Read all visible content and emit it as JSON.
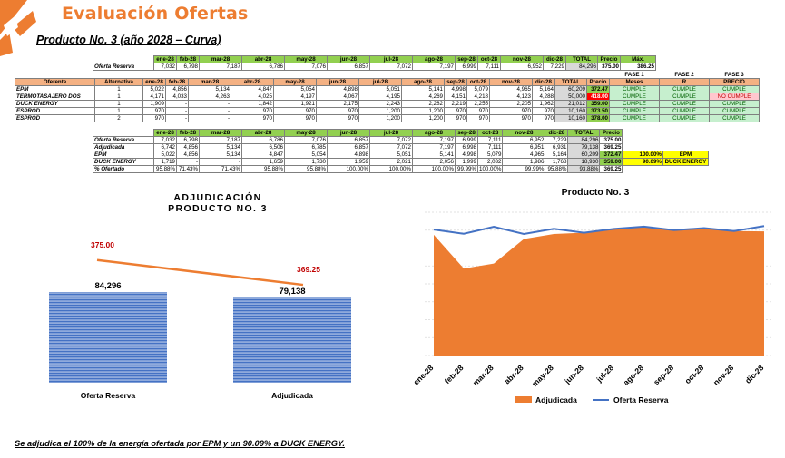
{
  "header": {
    "title": "Evaluación Ofertas",
    "subtitle": "Producto No. 3 (año 2028 – Curva)",
    "logo_icon": "orange-arrow-logo"
  },
  "reserve_table": {
    "headers": [
      "",
      "ene-28",
      "feb-28",
      "mar-28",
      "abr-28",
      "may-28",
      "jun-28",
      "jul-28",
      "ago-28",
      "sep-28",
      "oct-28",
      "nov-28",
      "dic-28",
      "TOTAL",
      "Precio",
      "Máx."
    ],
    "row": [
      "Oferta Reserva",
      "7,032",
      "6,798",
      "7,187",
      "6,786",
      "7,076",
      "6,857",
      "7,072",
      "7,197",
      "6,999",
      "7,111",
      "6,952",
      "7,229",
      "84,296",
      "375.00",
      "386.25"
    ]
  },
  "offers_table": {
    "phase_headers": [
      "FASE 1",
      "FASE 2",
      "FASE 3"
    ],
    "headers": [
      "Oferente",
      "Alternativa",
      "ene-28",
      "feb-28",
      "mar-28",
      "abr-28",
      "may-28",
      "jun-28",
      "jul-28",
      "ago-28",
      "sep-28",
      "oct-28",
      "nov-28",
      "dic-28",
      "TOTAL",
      "Precio",
      "Meses",
      "R",
      "PRECIO"
    ],
    "rows": [
      {
        "cells": [
          "EPM",
          "1",
          "5,022",
          "4,856",
          "5,134",
          "4,847",
          "5,054",
          "4,898",
          "5,051",
          "5,141",
          "4,998",
          "5,079",
          "4,965",
          "5,164",
          "60,209",
          "372.47",
          "CUMPLE",
          "CUMPLE",
          "CUMPLE"
        ],
        "price_ok": true,
        "f3_ok": true
      },
      {
        "cells": [
          "TERMOTASAJERO DOS",
          "1",
          "4,171",
          "4,033",
          "4,263",
          "4,025",
          "4,197",
          "4,067",
          "4,195",
          "4,269",
          "4,151",
          "4,218",
          "4,123",
          "4,288",
          "50,000",
          "418.00",
          "CUMPLE",
          "CUMPLE",
          "NO CUMPLE"
        ],
        "price_ok": false,
        "f3_ok": false
      },
      {
        "cells": [
          "DUCK ENERGY",
          "1",
          "1,909",
          "-",
          "-",
          "1,842",
          "1,921",
          "2,175",
          "2,243",
          "2,282",
          "2,219",
          "2,255",
          "2,205",
          "1,962",
          "21,012",
          "359.00",
          "CUMPLE",
          "CUMPLE",
          "CUMPLE"
        ],
        "price_ok": true,
        "f3_ok": true
      },
      {
        "cells": [
          "ESPROD",
          "1",
          "970",
          "-",
          "-",
          "970",
          "970",
          "970",
          "1,200",
          "1,200",
          "970",
          "970",
          "970",
          "970",
          "10,160",
          "373.50",
          "CUMPLE",
          "CUMPLE",
          "CUMPLE"
        ],
        "price_ok": true,
        "f3_ok": true
      },
      {
        "cells": [
          "ESPROD",
          "2",
          "970",
          "-",
          "-",
          "970",
          "970",
          "970",
          "1,200",
          "1,200",
          "970",
          "970",
          "970",
          "970",
          "10,160",
          "378.00",
          "CUMPLE",
          "CUMPLE",
          "CUMPLE"
        ],
        "price_ok": true,
        "f3_ok": true
      }
    ]
  },
  "award_table": {
    "headers": [
      "",
      "ene-28",
      "feb-28",
      "mar-28",
      "abr-28",
      "may-28",
      "jun-28",
      "jul-28",
      "ago-28",
      "sep-28",
      "oct-28",
      "nov-28",
      "dic-28",
      "TOTAL",
      "Precio"
    ],
    "rows": [
      [
        "Oferta Reserva",
        "7,032",
        "6,798",
        "7,187",
        "6,786",
        "7,076",
        "6,857",
        "7,072",
        "7,197",
        "6,999",
        "7,111",
        "6,952",
        "7,229",
        "84,296",
        "375.00"
      ],
      [
        "Adjudicada",
        "6,742",
        "4,856",
        "5,134",
        "6,506",
        "6,785",
        "6,857",
        "7,072",
        "7,197",
        "6,998",
        "7,111",
        "6,951",
        "6,931",
        "79,138",
        "369.25"
      ],
      [
        "EPM",
        "5,022",
        "4,856",
        "5,134",
        "4,847",
        "5,054",
        "4,898",
        "5,051",
        "5,141",
        "4,998",
        "5,079",
        "4,965",
        "5,164",
        "60,209",
        "372.47"
      ],
      [
        "DUCK ENERGY",
        "1,719",
        "-",
        "-",
        "1,659",
        "1,730",
        "1,959",
        "2,021",
        "2,056",
        "1,999",
        "2,032",
        "1,986",
        "1,768",
        "18,930",
        "359.00"
      ],
      [
        "% Ofertado",
        "95.88%",
        "71.43%",
        "71.43%",
        "95.88%",
        "95.88%",
        "100.00%",
        "100.00%",
        "100.00%",
        "99.99%",
        "100.00%",
        "99.99%",
        "95.88%",
        "93.88%",
        "369.25"
      ]
    ],
    "side": [
      {
        "pct": "100.00%",
        "name": "EPM"
      },
      {
        "pct": "90.09%",
        "name": "DUCK ENERGY"
      }
    ]
  },
  "chart_data": [
    {
      "type": "bar",
      "title": "ADJUDICACIÓN PRODUCTO NO. 3",
      "categories": [
        "Oferta Reserva",
        "Adjudicada"
      ],
      "series": [
        {
          "values": [
            84296,
            79138
          ]
        },
        {
          "values": [
            375.0,
            369.25
          ]
        }
      ],
      "bar_labels": [
        "84,296",
        "79,138"
      ],
      "price_labels": [
        "375.00",
        "369.25"
      ],
      "colors": {
        "bars": "#4472C4",
        "line": "#ED7D31",
        "price_label": "#C00000"
      },
      "legend": "none"
    },
    {
      "type": "area",
      "title": "Producto No. 3",
      "x": [
        "ene-28",
        "feb-28",
        "mar-28",
        "abr-28",
        "may-28",
        "jun-28",
        "jul-28",
        "ago-28",
        "sep-28",
        "oct-28",
        "nov-28",
        "dic-28"
      ],
      "series": [
        {
          "name": "Adjudicada",
          "type": "area",
          "color": "#ED7D31",
          "values": [
            6742,
            4856,
            5134,
            6506,
            6785,
            6857,
            7072,
            7197,
            6998,
            7111,
            6951,
            6931
          ]
        },
        {
          "name": "Oferta Reserva",
          "type": "line",
          "color": "#4472C4",
          "values": [
            7032,
            6798,
            7187,
            6786,
            7076,
            6857,
            7072,
            7197,
            6999,
            7111,
            6952,
            7229
          ]
        }
      ],
      "ylim": [
        0,
        8000
      ],
      "grid": true,
      "legend": "bottom"
    }
  ],
  "footer": "Se adjudica el 100% de la energía ofertada por EPM y un 90.09% a DUCK ENERGY."
}
